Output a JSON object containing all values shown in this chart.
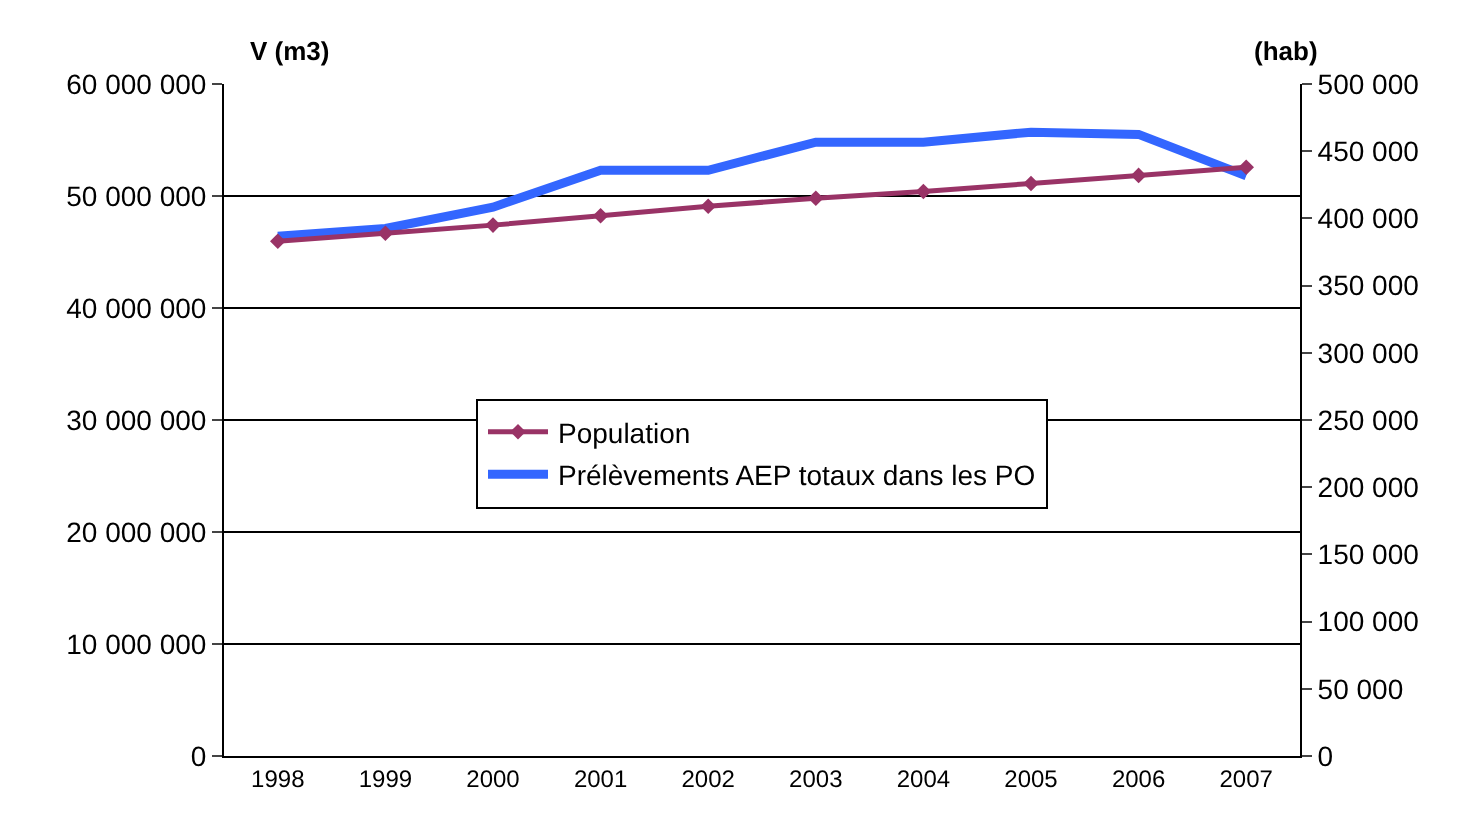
{
  "chart_data": {
    "type": "line",
    "ylabel": "V (m3)",
    "y2label": "(hab)",
    "categories": [
      "1998",
      "1999",
      "2000",
      "2001",
      "2002",
      "2003",
      "2004",
      "2005",
      "2006",
      "2007"
    ],
    "series": [
      {
        "name": "Population",
        "color": "#993366",
        "axis": "y2",
        "marker": "diamond",
        "values": [
          383000,
          389000,
          395000,
          402000,
          409000,
          415000,
          420000,
          426000,
          432000,
          438000
        ]
      },
      {
        "name": "Prélèvements AEP totaux dans les PO",
        "color": "#3366ff",
        "marker": "none",
        "values": [
          46400000,
          47100000,
          49000000,
          52300000,
          52300000,
          54800000,
          54800000,
          55700000,
          55500000,
          51800000
        ]
      }
    ],
    "ylim": [
      0,
      60000000
    ],
    "yticks": [
      {
        "value": 0,
        "label": "0"
      },
      {
        "value": 10000000,
        "label": "10 000 000"
      },
      {
        "value": 20000000,
        "label": "20 000 000"
      },
      {
        "value": 30000000,
        "label": "30 000 000"
      },
      {
        "value": 40000000,
        "label": "40 000 000"
      },
      {
        "value": 50000000,
        "label": "50 000 000"
      },
      {
        "value": 60000000,
        "label": "60 000 000"
      }
    ],
    "y2lim": [
      0,
      500000
    ],
    "y2ticks": [
      {
        "value": 0,
        "label": "0"
      },
      {
        "value": 50000,
        "label": "50 000"
      },
      {
        "value": 100000,
        "label": "100 000"
      },
      {
        "value": 150000,
        "label": "150 000"
      },
      {
        "value": 200000,
        "label": "200 000"
      },
      {
        "value": 250000,
        "label": "250 000"
      },
      {
        "value": 300000,
        "label": "300 000"
      },
      {
        "value": 350000,
        "label": "350 000"
      },
      {
        "value": 400000,
        "label": "400 000"
      },
      {
        "value": 450000,
        "label": "450 000"
      },
      {
        "value": 500000,
        "label": "500 000"
      }
    ],
    "grid": "y",
    "legend": "center"
  }
}
